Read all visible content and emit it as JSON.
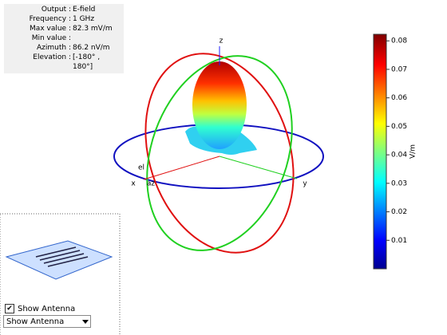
{
  "info": {
    "rows": [
      {
        "label": "Output :",
        "value": "E-field"
      },
      {
        "label": "Frequency :",
        "value": "1 GHz"
      },
      {
        "label": "Max value :",
        "value": "82.3 mV/m"
      },
      {
        "label": "Min value :"
      },
      {
        "label": "Azimuth :",
        "value": "86.2 nV/m"
      },
      {
        "label": "Elevation :",
        "value": "[-180° ,"
      },
      {
        "value": "180°]"
      }
    ]
  },
  "axes": {
    "z": "z",
    "x": "x",
    "y": "y",
    "el": "el",
    "az": "az"
  },
  "colorbar": {
    "label": "V/m",
    "range": [
      0,
      0.0823
    ],
    "ticks": [
      0.01,
      0.02,
      0.03,
      0.04,
      0.05,
      0.06,
      0.07,
      0.08
    ]
  },
  "controls": {
    "checkbox": "Show Antenna",
    "dropdown": "Show Antenna"
  }
}
